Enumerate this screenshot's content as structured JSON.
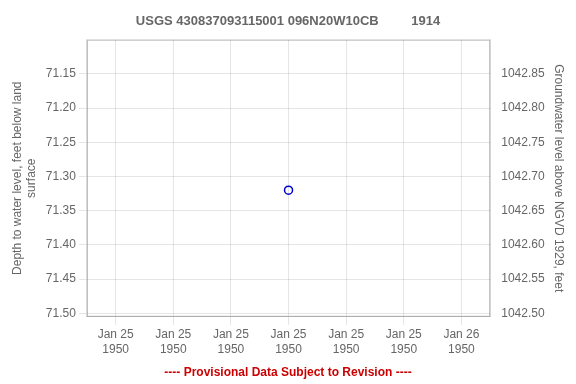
{
  "chart_data": {
    "type": "scatter",
    "title": "USGS 430837093115001 096N20W10CB         1914",
    "categories": [
      "Jan 25\n1950",
      "Jan 25\n1950",
      "Jan 25\n1950",
      "Jan 25\n1950",
      "Jan 25\n1950",
      "Jan 25\n1950",
      "Jan 26\n1950"
    ],
    "series": [
      {
        "values": [
          null,
          null,
          null,
          71.32,
          null,
          null,
          null
        ],
        "color": "#0000cc",
        "marker": "circle_open",
        "line_style": "none"
      }
    ],
    "ylabel": "Depth to water level, feet below land\nsurface",
    "y2label": "Groundwater level above NGVD 1929, feet",
    "ylim": [
      71.505,
      71.1
    ],
    "yticks": [
      71.15,
      {
        "value": 71.2,
        "label": "71.20"
      },
      71.25,
      {
        "value": 71.3,
        "label": "71.30"
      },
      71.35,
      {
        "value": 71.4,
        "label": "71.40"
      },
      71.45,
      {
        "value": 71.5,
        "label": "71.50"
      }
    ],
    "y2lim": [
      1042.495,
      1042.9
    ],
    "y2ticks": [
      1042.85,
      {
        "value": 1042.8,
        "label": "1042.80"
      },
      1042.75,
      {
        "value": 1042.7,
        "label": "1042.70"
      },
      1042.65,
      {
        "value": 1042.6,
        "label": "1042.60"
      },
      1042.55,
      {
        "value": 1042.5,
        "label": "1042.50"
      }
    ],
    "grid": true,
    "annotations": [
      {
        "text": "---- Provisional Data Subject to Revision ----",
        "color": "#cc0000"
      }
    ]
  }
}
